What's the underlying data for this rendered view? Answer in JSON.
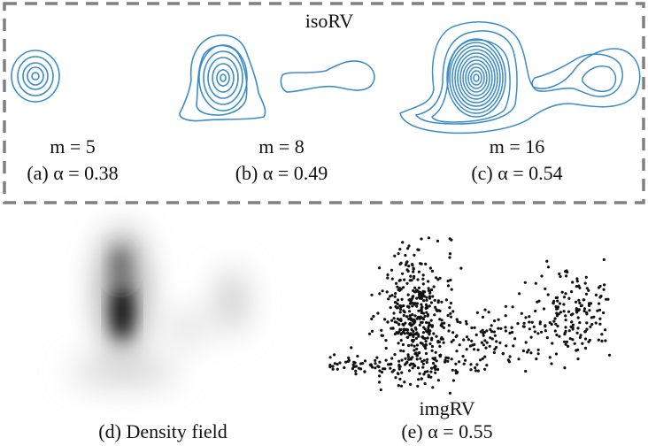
{
  "group_title": "isoRV",
  "panels": [
    {
      "m_label": "m = 5",
      "caption": "(a) α = 0.38"
    },
    {
      "m_label": "m = 8",
      "caption": "(b) α = 0.49"
    },
    {
      "m_label": "m = 16",
      "caption": "(c) α = 0.54"
    },
    {
      "caption": "(d) Density field"
    },
    {
      "top_label": "imgRV",
      "caption": "(e) α = 0.55"
    }
  ],
  "colors": {
    "contour": "#3b8cc9",
    "dash_frame": "#808080",
    "points": "#111111"
  }
}
